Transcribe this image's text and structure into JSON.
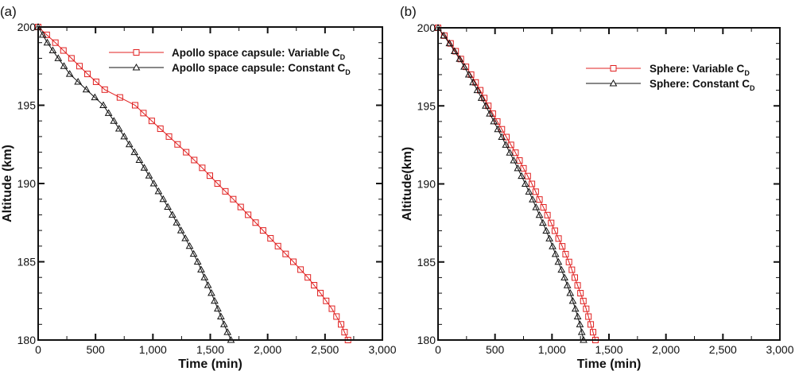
{
  "chart_data": [
    {
      "type": "line",
      "panel_label": "(a)",
      "xlabel": "Time (min)",
      "ylabel": "Altitude (km)",
      "xlim": [
        0,
        3000
      ],
      "ylim": [
        180,
        200
      ],
      "xticks": [
        "0",
        "500",
        "1,000",
        "1,500",
        "2,000",
        "2,500",
        "3,000"
      ],
      "yticks": [
        "180",
        "185",
        "190",
        "195",
        "200"
      ],
      "legend_position": "top-right",
      "series": [
        {
          "name": "Apollo space capsule: Variable C",
          "subscript": "D",
          "color": "#e02020",
          "marker": "square",
          "altitude": [
            200,
            199,
            198,
            197,
            196,
            195,
            194,
            193,
            192,
            191,
            190,
            189,
            188,
            187,
            186,
            185,
            184,
            183,
            182,
            181,
            180
          ],
          "time": [
            0,
            150,
            290,
            430,
            580,
            845,
            990,
            1140,
            1290,
            1430,
            1563,
            1700,
            1830,
            1960,
            2090,
            2224,
            2350,
            2460,
            2560,
            2640,
            2700
          ]
        },
        {
          "name": "Apollo space capsule: Constant C",
          "subscript": "D",
          "color": "#111111",
          "marker": "triangle",
          "altitude": [
            200,
            199,
            198,
            197,
            196,
            195,
            194,
            193,
            192,
            191,
            190,
            189,
            188,
            187,
            186,
            185,
            184,
            183,
            182,
            181,
            180
          ],
          "time": [
            0,
            80,
            175,
            275,
            420,
            568,
            660,
            750,
            840,
            925,
            1008,
            1090,
            1170,
            1245,
            1320,
            1390,
            1450,
            1510,
            1565,
            1620,
            1680
          ]
        }
      ]
    },
    {
      "type": "line",
      "panel_label": "(b)",
      "xlabel": "Time (min)",
      "ylabel": "Altitude(km)",
      "xlim": [
        0,
        3000
      ],
      "ylim": [
        180,
        200
      ],
      "xticks": [
        "0",
        "500",
        "1,000",
        "1,500",
        "2,000",
        "2,500",
        "3,000"
      ],
      "yticks": [
        "180",
        "185",
        "190",
        "195",
        "200"
      ],
      "legend_position": "top-right",
      "series": [
        {
          "name": "Sphere: Variable C",
          "subscript": "D",
          "color": "#e02020",
          "marker": "square",
          "altitude": [
            200,
            199,
            198,
            197,
            196,
            195,
            194,
            193,
            192,
            191,
            190,
            189,
            188,
            187,
            186,
            185,
            184,
            183,
            182,
            181,
            180
          ],
          "time": [
            0,
            110,
            200,
            290,
            370,
            441,
            520,
            600,
            680,
            750,
            824,
            890,
            960,
            1025,
            1090,
            1149,
            1200,
            1250,
            1300,
            1340,
            1381
          ]
        },
        {
          "name": "Sphere: Constant C",
          "subscript": "D",
          "color": "#111111",
          "marker": "triangle",
          "altitude": [
            200,
            199,
            198,
            197,
            196,
            195,
            194,
            193,
            192,
            191,
            190,
            189,
            188,
            187,
            186,
            185,
            184,
            183,
            182,
            181,
            180
          ],
          "time": [
            0,
            100,
            190,
            270,
            345,
            418,
            490,
            560,
            630,
            700,
            766,
            830,
            890,
            950,
            1005,
            1056,
            1110,
            1160,
            1205,
            1245,
            1277
          ]
        }
      ]
    }
  ]
}
